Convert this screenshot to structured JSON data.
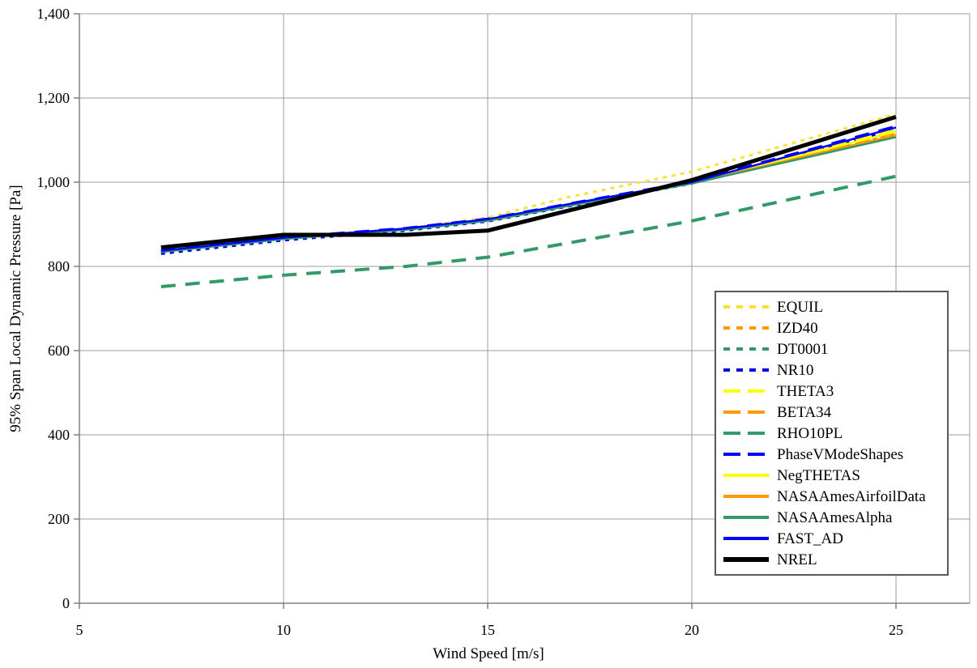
{
  "page": {
    "background": "#FFFFFF"
  },
  "chart_data": {
    "type": "line",
    "title": "",
    "xlabel": "Wind Speed [m/s]",
    "ylabel": "95% Span Local Dynamic Pressure [Pa]",
    "xlim": [
      5,
      26.8
    ],
    "ylim": [
      0,
      1400
    ],
    "x_ticks": [
      5,
      10,
      15,
      20,
      25
    ],
    "x_tick_labels": [
      "5",
      "10",
      "15",
      "20",
      "25"
    ],
    "y_ticks": [
      0,
      200,
      400,
      600,
      800,
      1000,
      1200,
      1400
    ],
    "y_tick_labels": [
      "0",
      "200",
      "400",
      "600",
      "800",
      "1,000",
      "1,200",
      "1,400"
    ],
    "grid": true,
    "grid_color": "#9C9C9C",
    "axis_color": "#808080",
    "legend_position": "inside-lower-right",
    "legend_border_color": "#595959",
    "x": [
      7,
      10,
      13,
      15,
      17,
      20,
      25
    ],
    "series": [
      {
        "name": "EQUIL",
        "color": "#FFE135",
        "style": "short-dash",
        "weight": 3,
        "values": [
          839,
          869,
          890,
          916,
          965,
          1025,
          1162
        ]
      },
      {
        "name": "IZD40",
        "color": "#FF9900",
        "style": "short-dash",
        "weight": 3,
        "values": [
          835,
          866,
          888,
          910,
          946,
          999,
          1115
        ]
      },
      {
        "name": "DT0001",
        "color": "#339966",
        "style": "short-dash",
        "weight": 3,
        "values": [
          834,
          865,
          887,
          909,
          945,
          998,
          1112
        ]
      },
      {
        "name": "NR10",
        "color": "#0000E6",
        "style": "short-dash",
        "weight": 3,
        "values": [
          830,
          862,
          885,
          907,
          943,
          997,
          1126
        ]
      },
      {
        "name": "THETA3",
        "color": "#FFFF00",
        "style": "long-dash",
        "weight": 3,
        "values": [
          837,
          868,
          890,
          912,
          948,
          1001,
          1124
        ]
      },
      {
        "name": "BETA34",
        "color": "#FF9900",
        "style": "long-dash",
        "weight": 3,
        "values": [
          836,
          867,
          889,
          911,
          947,
          1000,
          1118
        ]
      },
      {
        "name": "RHO10PL",
        "color": "#339966",
        "style": "long-dash",
        "weight": 4,
        "values": [
          752,
          779,
          800,
          822,
          856,
          908,
          1014
        ]
      },
      {
        "name": "PhaseVModeShapes",
        "color": "#0000FF",
        "style": "long-dash",
        "weight": 3,
        "values": [
          838,
          869,
          891,
          913,
          949,
          1002,
          1133
        ]
      },
      {
        "name": "NegTHETAS",
        "color": "#FFFF00",
        "style": "solid",
        "weight": 2.5,
        "values": [
          836,
          867,
          889,
          911,
          947,
          999,
          1120
        ]
      },
      {
        "name": "NASAAmesAirfoilData",
        "color": "#FF9900",
        "style": "solid",
        "weight": 2.5,
        "values": [
          835,
          866,
          888,
          910,
          946,
          998,
          1112
        ]
      },
      {
        "name": "NASAAmesAlpha",
        "color": "#339966",
        "style": "solid",
        "weight": 2.5,
        "values": [
          834,
          865,
          887,
          908,
          944,
          997,
          1107
        ]
      },
      {
        "name": "FAST_AD",
        "color": "#0000FF",
        "style": "solid",
        "weight": 2.5,
        "values": [
          837,
          868,
          890,
          912,
          948,
          1000,
          1130
        ]
      },
      {
        "name": "NREL",
        "color": "#000000",
        "style": "solid",
        "weight": 5,
        "values": [
          845,
          875,
          875,
          885,
          933,
          1005,
          1155
        ]
      }
    ]
  }
}
